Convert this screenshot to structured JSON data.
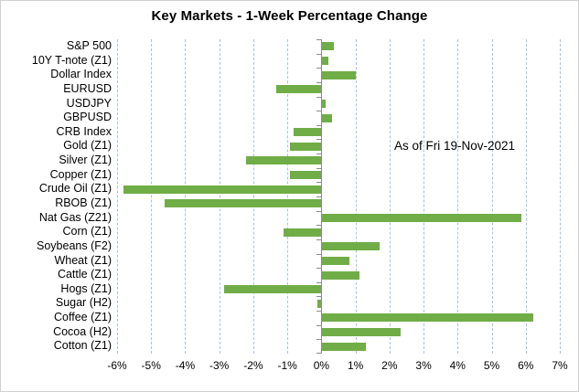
{
  "chart_data": {
    "type": "bar",
    "orientation": "horizontal",
    "title": "Key Markets - 1-Week Percentage Change",
    "annotation": "As of Fri 19-Nov-2021",
    "categories": [
      "S&P 500",
      "10Y T-note (Z1)",
      "Dollar Index",
      "EURUSD",
      "USDJPY",
      "GBPUSD",
      "CRB Index",
      "Gold (Z1)",
      "Silver (Z1)",
      "Copper (Z1)",
      "Crude Oil (Z1)",
      "RBOB (Z1)",
      "Nat Gas (Z21)",
      "Corn (Z1)",
      "Soybeans (F2)",
      "Wheat (Z1)",
      "Cattle (Z1)",
      "Hogs (Z1)",
      "Sugar (H2)",
      "Coffee (Z1)",
      "Cocoa (H2)",
      "Cotton (Z1)"
    ],
    "values": [
      0.35,
      0.2,
      1.0,
      -1.3,
      0.1,
      0.3,
      -0.8,
      -0.9,
      -2.2,
      -0.9,
      -5.8,
      -4.6,
      5.85,
      -1.1,
      1.7,
      0.8,
      1.1,
      -2.85,
      -0.1,
      6.2,
      2.3,
      1.3
    ],
    "value_unit": "%",
    "xlabel": "",
    "ylabel": "",
    "xlim": [
      -6,
      7
    ],
    "xticks": [
      -6,
      -5,
      -4,
      -3,
      -2,
      -1,
      0,
      1,
      2,
      3,
      4,
      5,
      6,
      7
    ],
    "xtick_labels": [
      "-6%",
      "-5%",
      "-4%",
      "-3%",
      "-2%",
      "-1%",
      "0%",
      "1%",
      "2%",
      "3%",
      "4%",
      "5%",
      "6%",
      "7%"
    ],
    "grid": "vertical-dashed",
    "legend": "none",
    "colors": {
      "bar": "#70ad47",
      "gridline": "#a6c3e3",
      "axis": "#8c8c8c",
      "title_text": "#000000",
      "label_text": "#000000",
      "background": "#ffffff",
      "frame_border": "#d0d0d0"
    }
  }
}
